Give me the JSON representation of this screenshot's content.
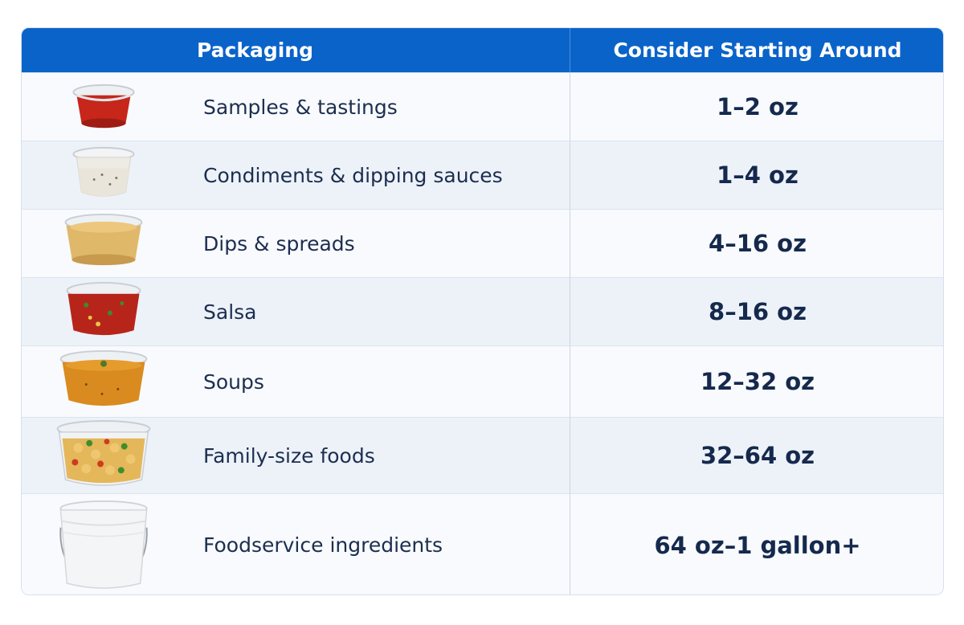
{
  "table": {
    "headers": {
      "packaging": "Packaging",
      "starting": "Consider Starting Around"
    },
    "rows": [
      {
        "use": "Samples & tastings",
        "size": "1–2 oz",
        "thumb": "small-sauce-cup-icon"
      },
      {
        "use": "Condiments & dipping sauces",
        "size": "1–4 oz",
        "thumb": "dressing-cup-icon"
      },
      {
        "use": "Dips & spreads",
        "size": "4–16 oz",
        "thumb": "hummus-container-icon"
      },
      {
        "use": "Salsa",
        "size": "8–16 oz",
        "thumb": "salsa-container-icon"
      },
      {
        "use": "Soups",
        "size": "12–32 oz",
        "thumb": "soup-container-icon"
      },
      {
        "use": "Family-size foods",
        "size": "32–64 oz",
        "thumb": "pasta-salad-container-icon"
      },
      {
        "use": "Foodservice ingredients",
        "size": "64 oz–1 gallon+",
        "thumb": "bucket-icon"
      }
    ],
    "colors": {
      "header": "#0a63c9",
      "text": "#15294d",
      "row_alt": "#edf2f9"
    }
  }
}
